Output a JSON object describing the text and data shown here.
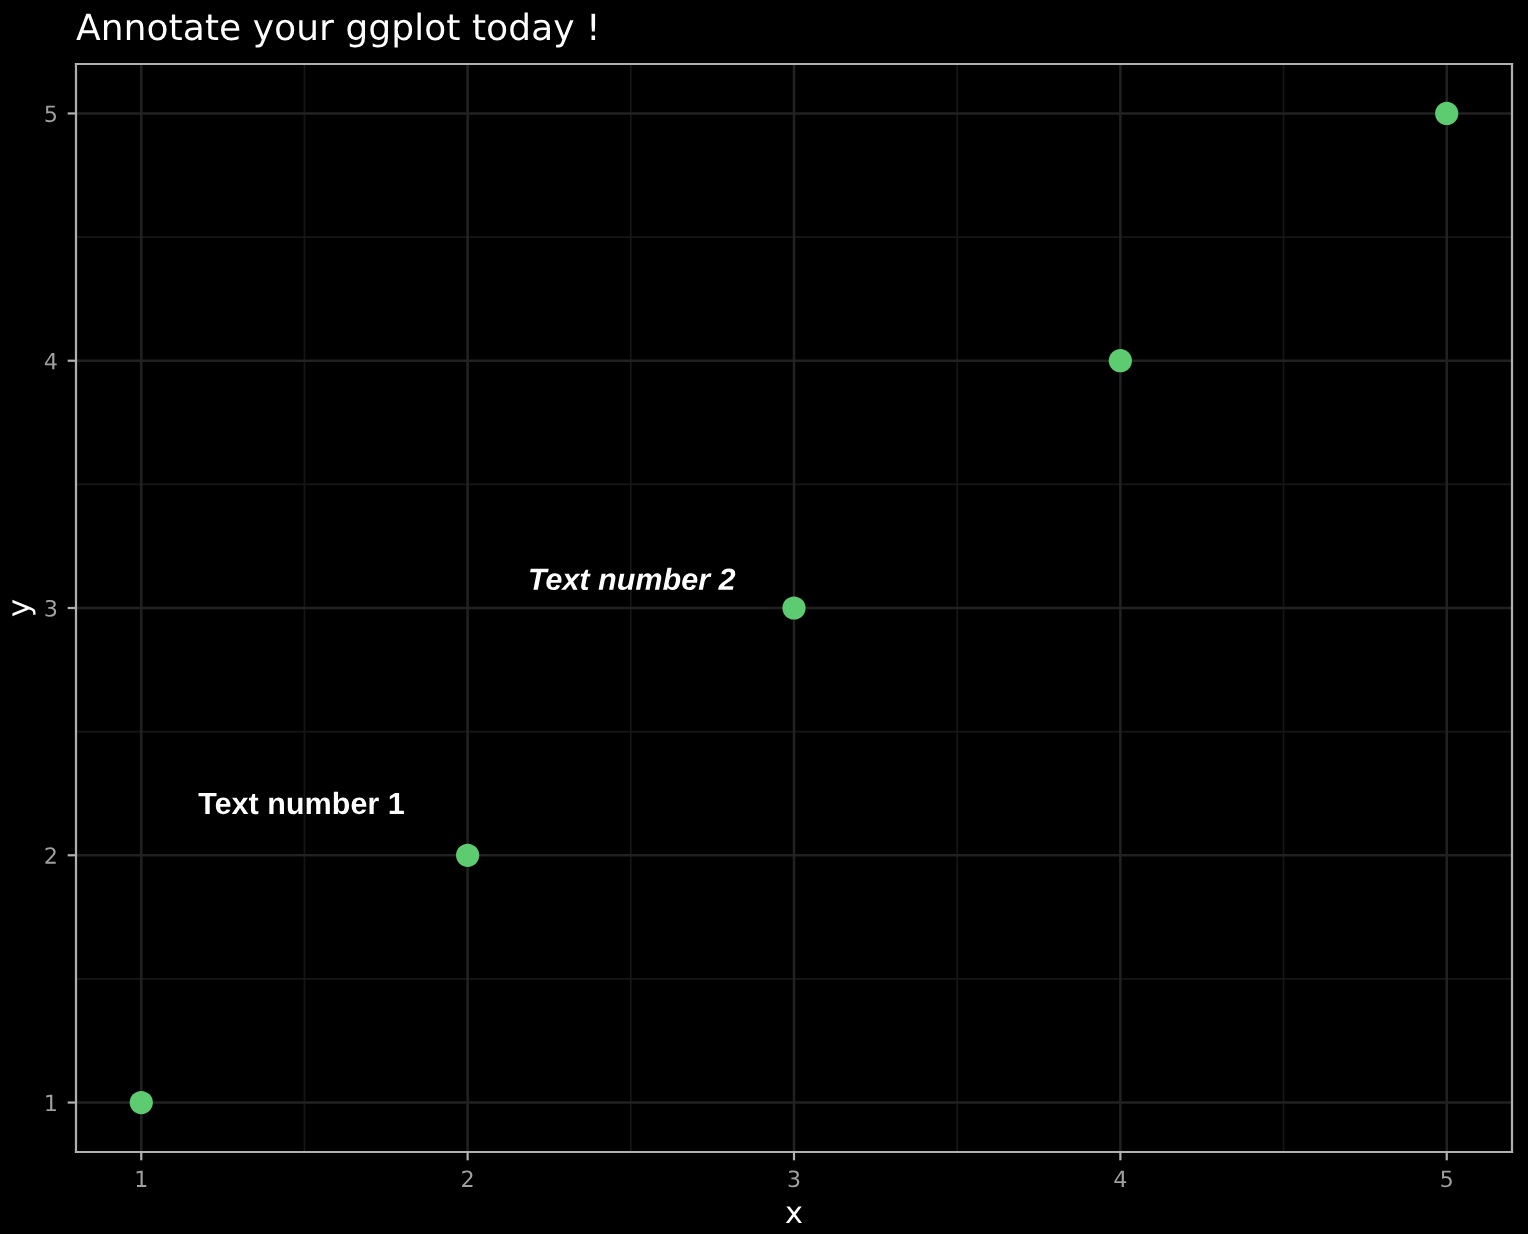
{
  "chart_data": {
    "type": "scatter",
    "title": "Annotate your ggplot today !",
    "xlabel": "x",
    "ylabel": "y",
    "x": [
      1,
      2,
      3,
      4,
      5
    ],
    "series": [
      {
        "color": "#5dcb6f",
        "values": [
          1,
          2,
          3,
          4,
          5
        ]
      }
    ],
    "xlim": [
      0.8,
      5.2
    ],
    "ylim": [
      0.8,
      5.2
    ],
    "xticks": [
      1,
      2,
      3,
      4,
      5
    ],
    "yticks": [
      1,
      2,
      3,
      4,
      5
    ],
    "grid": true,
    "marker": "circle",
    "legend": false,
    "annotations": [
      "Text number 1",
      "Text number 2"
    ]
  }
}
